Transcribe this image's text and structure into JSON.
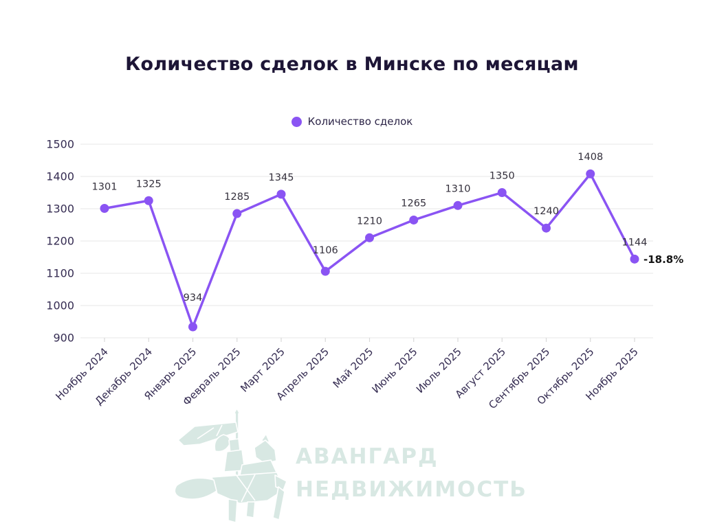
{
  "title": "Количество сделок в Минске по месяцам",
  "legend": {
    "label": "Количество сделок",
    "color": "#8a54f3"
  },
  "chart_data": {
    "type": "line",
    "title": "Количество сделок в Минске по месяцам",
    "categories": [
      "Ноябрь 2024",
      "Декабрь 2024",
      "Январь 2025",
      "Февраль 2025",
      "Март 2025",
      "Апрель 2025",
      "Май 2025",
      "Июнь 2025",
      "Июль 2025",
      "Август 2025",
      "Сентябрь 2025",
      "Октябрь 2025",
      "Ноябрь 2025"
    ],
    "series": [
      {
        "name": "Количество сделок",
        "values": [
          1301,
          1325,
          934,
          1285,
          1345,
          1106,
          1210,
          1265,
          1310,
          1350,
          1240,
          1408,
          1144
        ]
      }
    ],
    "ylim": [
      900,
      1500
    ],
    "yticks": [
      900,
      1000,
      1100,
      1200,
      1300,
      1400,
      1500
    ],
    "xlabel": "",
    "ylabel": "",
    "grid": true,
    "legend_position": "top",
    "line_color": "#8a54f3",
    "annotations": [
      {
        "text": "-18.8%",
        "point_index": 12
      }
    ]
  },
  "watermark": {
    "line1": "АВАНГАРД",
    "line2": "НЕДВИЖИМОСТЬ",
    "color": "#d8e8e3"
  },
  "colors": {
    "background": "#ffffff",
    "title_text": "#1d1536",
    "axis_text": "#352c52",
    "data_label_text": "#34303c",
    "gridline": "#ececec",
    "annotation_text": "#141414",
    "line": "#8a54f3",
    "watermark": "#d8e8e3"
  }
}
